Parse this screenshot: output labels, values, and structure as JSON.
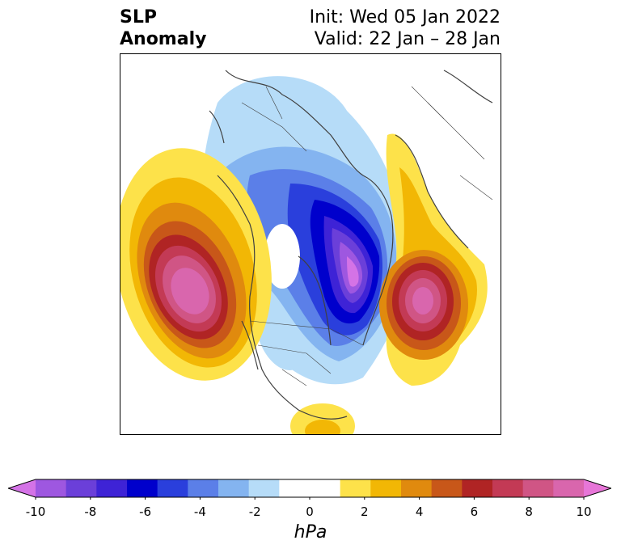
{
  "title": {
    "left_line1": "SLP",
    "left_line2": "Anomaly",
    "init": "Init: Wed 05 Jan 2022",
    "valid": "Valid: 22 Jan – 28 Jan"
  },
  "colorbar": {
    "unit": "hPa",
    "range": [
      -10,
      10
    ],
    "step": 1,
    "ticks": [
      "-10",
      "-8",
      "-6",
      "-4",
      "-2",
      "0",
      "2",
      "4",
      "6",
      "8",
      "10"
    ],
    "colors": [
      "#d473e6",
      "#9e57e0",
      "#6b3fd9",
      "#3e23d6",
      "#0000cc",
      "#2a3fdc",
      "#5b7fe8",
      "#84b4f0",
      "#b6dcf8",
      "#ffffff",
      "#ffffff",
      "#fde24a",
      "#f2b705",
      "#e08a0e",
      "#c85719",
      "#b02424",
      "#c33a55",
      "#d05585",
      "#d966ad",
      "#e776d8"
    ],
    "extend": "both"
  }
}
